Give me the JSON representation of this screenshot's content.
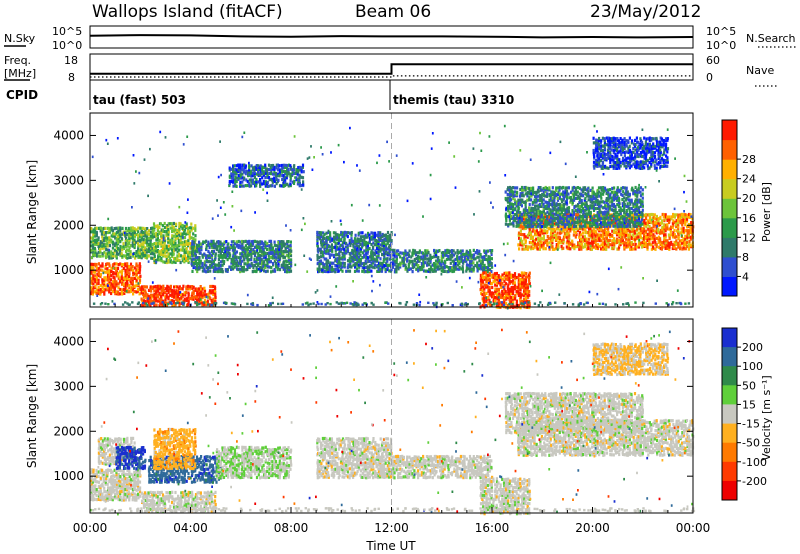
{
  "header": {
    "title": "Wallops Island (fitACF)",
    "beam": "Beam 06",
    "date": "23/May/2012"
  },
  "noise_panel": {
    "left_label": "N.Sky",
    "left_ticks": [
      "10^5",
      "10^0"
    ],
    "right_ticks": [
      "10^5",
      "10^0"
    ],
    "right_label": "N.Search"
  },
  "freq_panel": {
    "left_label_1": "Freq.",
    "left_label_2": "[MHz]",
    "left_ticks": [
      "18",
      "8"
    ],
    "right_ticks": [
      "60",
      "0"
    ],
    "right_label": "Nave",
    "cpid_label": "CPID"
  },
  "chart_data": [
    {
      "type": "line",
      "name": "noise",
      "x_hours": [
        0,
        2,
        4,
        6,
        8,
        10,
        12,
        14,
        16,
        18,
        20,
        22,
        24
      ],
      "sky_noise_log10": [
        3.2,
        3.4,
        3.3,
        3.0,
        2.9,
        3.1,
        3.0,
        3.0,
        2.9,
        2.7,
        2.8,
        2.7,
        2.8
      ],
      "ylim": [
        0,
        5
      ]
    },
    {
      "type": "line",
      "name": "frequency",
      "x_hours": [
        0,
        12,
        12,
        24
      ],
      "frequency_mhz": [
        10.0,
        10.0,
        14.5,
        14.5
      ],
      "nave": [
        3,
        3,
        6,
        6
      ],
      "ylim": [
        8,
        18
      ],
      "programs": [
        {
          "label": "tau (fast) 503",
          "start_hour": 0
        },
        {
          "label": "themis (tau) 3310",
          "start_hour": 12
        }
      ]
    },
    {
      "type": "heatmap",
      "name": "power",
      "xlabel": "",
      "ylabel": "Slant Range [km]",
      "xlim": [
        0,
        24
      ],
      "ylim": [
        180,
        4500
      ],
      "yticks": [
        1000,
        2000,
        3000,
        4000
      ],
      "colorbar_label": "Power [dB]",
      "colorbar_ticks": [
        4,
        8,
        12,
        16,
        20,
        24,
        28
      ],
      "colorbar_colors": [
        "#0018ff",
        "#2f4fd0",
        "#2f7a6a",
        "#2b9a4a",
        "#6cc43a",
        "#c8cc20",
        "#ffb000",
        "#ff6000",
        "#ff1a00"
      ],
      "regions": [
        {
          "t0": 0.0,
          "t1": 2.0,
          "r0": 500,
          "r1": 1200,
          "dB": 26
        },
        {
          "t0": 0.0,
          "t1": 2.5,
          "r0": 1300,
          "r1": 2000,
          "dB": 14
        },
        {
          "t0": 2.0,
          "t1": 5.0,
          "r0": 250,
          "r1": 700,
          "dB": 28
        },
        {
          "t0": 2.5,
          "t1": 4.2,
          "r0": 1200,
          "r1": 2100,
          "dB": 16
        },
        {
          "t0": 4.0,
          "t1": 8.0,
          "r0": 1000,
          "r1": 1700,
          "dB": 10
        },
        {
          "t0": 5.5,
          "t1": 8.5,
          "r0": 2900,
          "r1": 3400,
          "dB": 8
        },
        {
          "t0": 9.0,
          "t1": 12.0,
          "r0": 1000,
          "r1": 1900,
          "dB": 9
        },
        {
          "t0": 12.0,
          "t1": 16.0,
          "r0": 1000,
          "r1": 1500,
          "dB": 10
        },
        {
          "t0": 15.5,
          "t1": 17.5,
          "r0": 200,
          "r1": 1000,
          "dB": 27
        },
        {
          "t0": 17.0,
          "t1": 24.0,
          "r0": 1500,
          "r1": 2300,
          "dB": 24
        },
        {
          "t0": 16.5,
          "t1": 22.0,
          "r0": 2000,
          "r1": 2900,
          "dB": 10
        },
        {
          "t0": 20.0,
          "t1": 23.0,
          "r0": 3300,
          "r1": 4000,
          "dB": 6
        }
      ]
    },
    {
      "type": "heatmap",
      "name": "velocity",
      "xlabel": "Time UT",
      "ylabel": "Slant Range [km]",
      "xlim": [
        0,
        24
      ],
      "ylim": [
        180,
        4500
      ],
      "yticks": [
        1000,
        2000,
        3000,
        4000
      ],
      "xticks": [
        "00:00",
        "04:00",
        "08:00",
        "12:00",
        "16:00",
        "20:00",
        "00:00"
      ],
      "colorbar_label": "Velocity [m s⁻¹]",
      "colorbar_ticks": [
        "200",
        "100",
        "50",
        "15",
        "-15",
        "-50",
        "-100",
        "-200"
      ],
      "colorbar_colors": [
        "#1a2fd0",
        "#2f6a9a",
        "#2f8a4a",
        "#5fcf3a",
        "#c8c8c0",
        "#ffb020",
        "#ff7a00",
        "#ff3a00",
        "#ee0000"
      ],
      "regions": [
        {
          "t0": 0.0,
          "t1": 2.0,
          "r0": 500,
          "r1": 1200,
          "v": 0
        },
        {
          "t0": 0.3,
          "t1": 1.8,
          "r0": 1300,
          "r1": 1900,
          "v": 0
        },
        {
          "t0": 1.0,
          "t1": 2.2,
          "r0": 1200,
          "r1": 1700,
          "v": 180
        },
        {
          "t0": 2.0,
          "t1": 5.0,
          "r0": 250,
          "r1": 700,
          "v": 0
        },
        {
          "t0": 2.3,
          "t1": 5.2,
          "r0": 900,
          "r1": 1500,
          "v": 150
        },
        {
          "t0": 2.5,
          "t1": 4.2,
          "r0": 1200,
          "r1": 2100,
          "v": -50
        },
        {
          "t0": 5.0,
          "t1": 8.0,
          "r0": 1000,
          "r1": 1700,
          "v": 20
        },
        {
          "t0": 9.0,
          "t1": 12.0,
          "r0": 1000,
          "r1": 1900,
          "v": 0
        },
        {
          "t0": 12.0,
          "t1": 16.0,
          "r0": 1000,
          "r1": 1500,
          "v": 0
        },
        {
          "t0": 15.5,
          "t1": 17.5,
          "r0": 200,
          "r1": 1000,
          "v": 0
        },
        {
          "t0": 17.0,
          "t1": 24.0,
          "r0": 1500,
          "r1": 2300,
          "v": 0
        },
        {
          "t0": 16.5,
          "t1": 22.0,
          "r0": 2000,
          "r1": 2900,
          "v": 0
        },
        {
          "t0": 20.0,
          "t1": 23.0,
          "r0": 3300,
          "r1": 4000,
          "v": -30
        }
      ]
    }
  ],
  "colors": {
    "axis": "#000000",
    "divider": "#aaaaaa"
  }
}
